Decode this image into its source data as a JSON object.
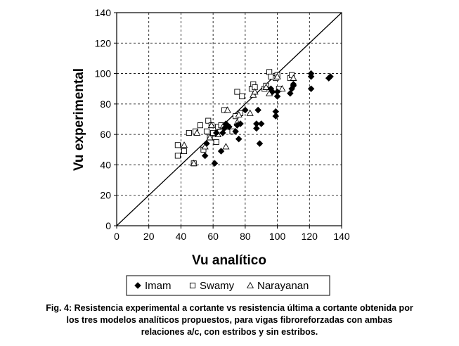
{
  "chart_data": {
    "type": "scatter",
    "xlabel": "Vu analítico",
    "ylabel": "Vu experimental",
    "xlim": [
      0,
      140
    ],
    "ylim": [
      0,
      140
    ],
    "xticks": [
      0,
      20,
      40,
      60,
      80,
      100,
      120,
      140
    ],
    "yticks": [
      0,
      20,
      40,
      60,
      80,
      100,
      120,
      140
    ],
    "grid": "dashed",
    "legend_position": "bottom",
    "reference_line": {
      "from": [
        0,
        0
      ],
      "to": [
        140,
        140
      ]
    },
    "series": [
      {
        "name": "Imam",
        "marker": "diamond-filled",
        "points": [
          [
            55,
            46
          ],
          [
            56,
            54
          ],
          [
            61,
            41
          ],
          [
            62,
            61
          ],
          [
            65,
            49
          ],
          [
            66,
            61
          ],
          [
            67,
            64
          ],
          [
            68,
            67
          ],
          [
            70,
            65
          ],
          [
            74,
            62
          ],
          [
            75,
            66
          ],
          [
            76,
            57
          ],
          [
            77,
            67
          ],
          [
            80,
            76
          ],
          [
            87,
            64
          ],
          [
            87,
            67
          ],
          [
            88,
            76
          ],
          [
            89,
            54
          ],
          [
            90,
            67
          ],
          [
            96,
            90
          ],
          [
            97,
            88
          ],
          [
            99,
            75
          ],
          [
            99,
            72
          ],
          [
            100,
            85
          ],
          [
            100,
            88
          ],
          [
            108,
            87
          ],
          [
            109,
            90
          ],
          [
            110,
            92
          ],
          [
            110,
            93
          ],
          [
            121,
            90
          ],
          [
            121,
            98
          ],
          [
            121,
            100
          ],
          [
            132,
            97
          ],
          [
            133,
            98
          ]
        ]
      },
      {
        "name": "Swamy",
        "marker": "square-open",
        "points": [
          [
            38,
            46
          ],
          [
            38,
            53
          ],
          [
            42,
            49
          ],
          [
            45,
            61
          ],
          [
            48,
            41
          ],
          [
            49,
            62
          ],
          [
            52,
            66
          ],
          [
            54,
            50
          ],
          [
            56,
            62
          ],
          [
            57,
            69
          ],
          [
            58,
            58
          ],
          [
            59,
            66
          ],
          [
            60,
            61
          ],
          [
            62,
            55
          ],
          [
            63,
            65
          ],
          [
            65,
            66
          ],
          [
            67,
            76
          ],
          [
            69,
            65
          ],
          [
            72,
            62
          ],
          [
            74,
            72
          ],
          [
            75,
            88
          ],
          [
            77,
            74
          ],
          [
            78,
            85
          ],
          [
            84,
            90
          ],
          [
            85,
            93
          ],
          [
            86,
            91
          ],
          [
            92,
            90
          ],
          [
            93,
            92
          ],
          [
            95,
            101
          ],
          [
            96,
            98
          ],
          [
            99,
            97
          ],
          [
            100,
            99
          ],
          [
            101,
            90
          ],
          [
            108,
            97
          ],
          [
            109,
            99
          ]
        ]
      },
      {
        "name": "Narayanan",
        "marker": "triangle-open",
        "points": [
          [
            42,
            53
          ],
          [
            48,
            41
          ],
          [
            50,
            61
          ],
          [
            55,
            52
          ],
          [
            58,
            58
          ],
          [
            59,
            66
          ],
          [
            63,
            60
          ],
          [
            66,
            65
          ],
          [
            68,
            52
          ],
          [
            69,
            76
          ],
          [
            75,
            68
          ],
          [
            76,
            73
          ],
          [
            83,
            74
          ],
          [
            85,
            86
          ],
          [
            86,
            88
          ],
          [
            93,
            91
          ],
          [
            95,
            87
          ],
          [
            100,
            98
          ],
          [
            103,
            90
          ],
          [
            110,
            97
          ]
        ]
      }
    ]
  },
  "caption": {
    "line1": "Fig. 4: Resistencia experimental a cortante vs resistencia última a cortante obtenida por",
    "line2": "los tres modelos analíticos propuestos, para vigas fibroreforzadas con ambas",
    "line3": "relaciones a/c, con estribos y sin estribos."
  }
}
